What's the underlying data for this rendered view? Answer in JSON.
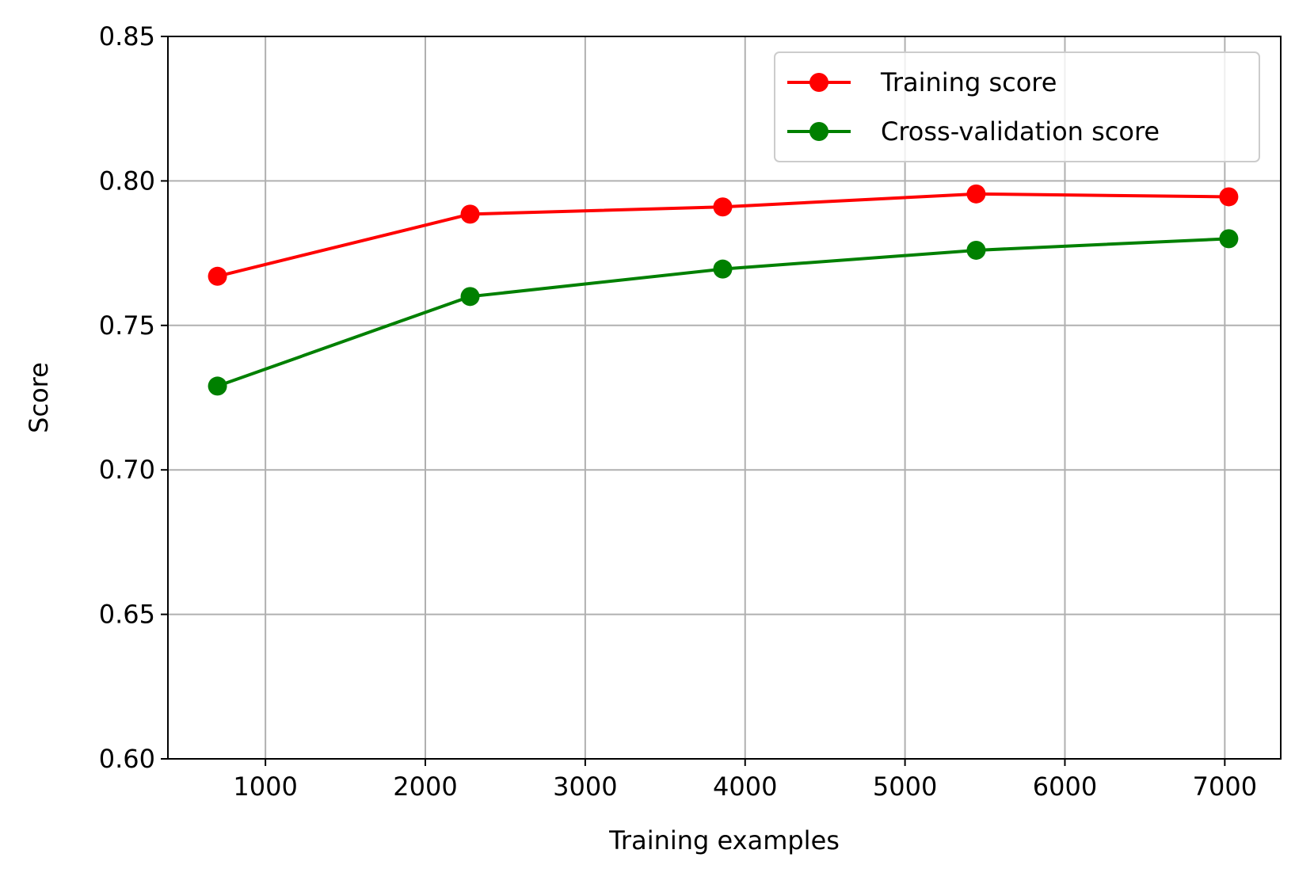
{
  "chart_data": {
    "type": "line",
    "title": "",
    "xlabel": "Training examples",
    "ylabel": "Score",
    "xlim": [
      390,
      7350
    ],
    "ylim": [
      0.6,
      0.85
    ],
    "xticks": [
      1000,
      2000,
      3000,
      4000,
      5000,
      6000,
      7000
    ],
    "xtick_labels": [
      "1000",
      "2000",
      "3000",
      "4000",
      "5000",
      "6000",
      "7000"
    ],
    "yticks": [
      0.6,
      0.65,
      0.7,
      0.75,
      0.8,
      0.85
    ],
    "ytick_labels": [
      "0.60",
      "0.65",
      "0.70",
      "0.75",
      "0.80",
      "0.85"
    ],
    "grid": true,
    "legend_position": "upper-right",
    "x": [
      700,
      2280,
      3860,
      5445,
      7025
    ],
    "series": [
      {
        "name": "Training score",
        "color": "#ff0000",
        "marker": "circle",
        "values": [
          0.767,
          0.7885,
          0.791,
          0.7955,
          0.7945
        ]
      },
      {
        "name": "Cross-validation score",
        "color": "#008000",
        "marker": "circle",
        "values": [
          0.729,
          0.76,
          0.7695,
          0.776,
          0.78
        ]
      }
    ]
  }
}
